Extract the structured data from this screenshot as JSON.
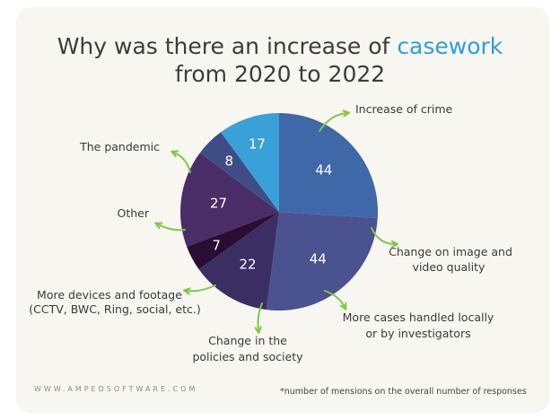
{
  "title": {
    "line1_prefix": "Why was there an increase of ",
    "line1_accent": "casework",
    "line2": "from 2020 to 2022"
  },
  "footer": {
    "website": "WWW.AMPEDSOFTWARE.COM",
    "note": "*number of mensions on the overall number of responses"
  },
  "colors": {
    "accent": "#2f9fd6",
    "arrow": "#7ac943",
    "card_bg": "#f8f6f1"
  },
  "chart_data": {
    "type": "pie",
    "title": "Why was there an increase of casework from 2020 to 2022",
    "slices": [
      {
        "label": "Increase of crime",
        "value": 44,
        "color": "#3e68a8",
        "label_lines": [
          "Increase of crime"
        ]
      },
      {
        "label": "Change on image and video quality",
        "value": 44,
        "color": "#4a5290",
        "label_lines": [
          "Change on image and",
          "video quality"
        ]
      },
      {
        "label": "More cases handled locally or by investigators",
        "value": 22,
        "color": "#3a2e63",
        "label_lines": [
          "More cases handled locally",
          "or by investigators"
        ]
      },
      {
        "label": "Change in the policies and society",
        "value": 7,
        "color": "#2a0d32",
        "label_lines": [
          "Change in the",
          "policies and society"
        ]
      },
      {
        "label": "More devices and footage (CCTV, BWC, Ring, social, etc.)",
        "value": 27,
        "color": "#4a2c66",
        "label_lines": [
          "More devices and footage",
          "(CCTV, BWC, Ring, social, etc.)"
        ]
      },
      {
        "label": "Other",
        "value": 8,
        "color": "#3f4d86",
        "label_lines": [
          "Other"
        ]
      },
      {
        "label": "The pandemic",
        "value": 17,
        "color": "#3aa0d8",
        "label_lines": [
          "The pandemic"
        ]
      }
    ],
    "start_angle_deg": 0,
    "legend": "callouts"
  }
}
